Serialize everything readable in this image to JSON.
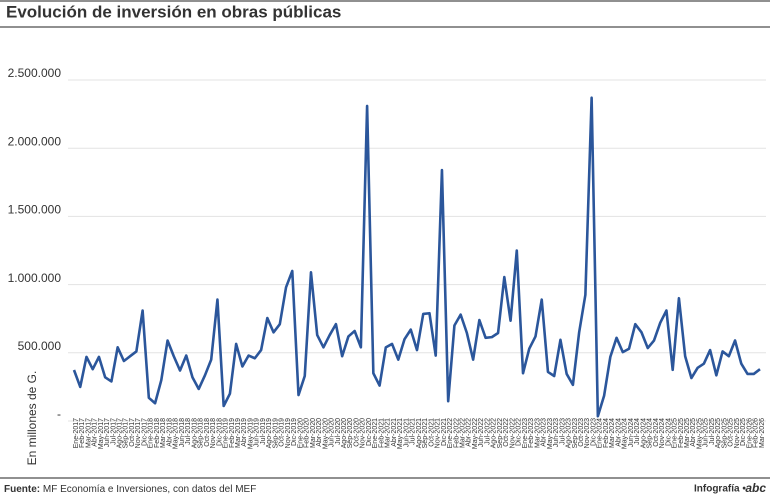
{
  "chart_data": {
    "type": "line",
    "title": "Evolución de inversión en obras públicas",
    "y_label": "En millones de G.",
    "source_label": "Fuente:",
    "source": "MF Economía e Inversiones, con datos del MEF",
    "credit": "Infografía •",
    "logo": "abc",
    "categories": [
      "Ene-2017",
      "Feb-2017",
      "Mar-2017",
      "Abr-2017",
      "May-2017",
      "Jun-2017",
      "Jul-2017",
      "Ago-2017",
      "Sep-2017",
      "Oct-2017",
      "Nov-2017",
      "Dic-2017",
      "Ene-2018",
      "Feb-2018",
      "Mar-2018",
      "Abr-2018",
      "May-2018",
      "Jun-2018",
      "Jul-2018",
      "Ago-2018",
      "Sep-2018",
      "Oct-2018",
      "Nov-2018",
      "Dic-2018",
      "Ene-2019",
      "Feb-2019",
      "Mar-2019",
      "Abr-2019",
      "May-2019",
      "Jun-2019",
      "Jul-2019",
      "Ago-2019",
      "Sep-2019",
      "Oct-2019",
      "Nov-2019",
      "Dic-2019",
      "Ene-2020",
      "Feb-2020",
      "Mar-2020",
      "Abr-2020",
      "May-2020",
      "Jun-2020",
      "Jul-2020",
      "Ago-2020",
      "Sep-2020",
      "Oct-2020",
      "Nov-2020",
      "Dic-2020",
      "Ene-2021",
      "Feb-2021",
      "Mar-2021",
      "Abr-2021",
      "May-2021",
      "Jun-2021",
      "Jul-2021",
      "Ago-2021",
      "Sep-2021",
      "Oct-2021",
      "Nov-2021",
      "Dic-2021",
      "Ene-2022",
      "Feb-2022",
      "Mar-2022",
      "Abr-2022",
      "May-2022",
      "Jun-2022",
      "Jul-2022",
      "Ago-2022",
      "Sep-2022",
      "Oct-2022",
      "Nov-2022",
      "Dic-2022",
      "Ene-2023",
      "Feb-2023",
      "Mar-2023",
      "Abr-2023",
      "May-2023",
      "Jun-2023",
      "Jul-2023",
      "Ago-2023",
      "Sep-2023",
      "Oct-2023",
      "Nov-2023",
      "Dic-2023",
      "Ene-2024",
      "Feb-2024",
      "Mar-2024",
      "Abr-2024",
      "May-2024",
      "Jun-2024",
      "Jul-2024",
      "Ago-2024",
      "Sep-2024",
      "Oct-2024",
      "Nov-2024",
      "Dic-2024",
      "Ene-2025",
      "Feb-2025",
      "Mar-2025",
      "Abr-2025",
      "May-2025",
      "Jun-2025",
      "Jul-2025",
      "Ago-2025",
      "Sep-2025",
      "Oct-2025",
      "Nov-2025",
      "Dic-2025",
      "Ene-2026",
      "Feb-2026",
      "Mar-2026"
    ],
    "values": [
      374000,
      250000,
      470000,
      380000,
      470000,
      320000,
      290000,
      540000,
      440000,
      475000,
      510000,
      810000,
      170000,
      130000,
      300000,
      590000,
      475000,
      370000,
      480000,
      320000,
      235000,
      335000,
      450000,
      890000,
      110000,
      200000,
      565000,
      400000,
      480000,
      460000,
      520000,
      755000,
      650000,
      710000,
      980000,
      1100000,
      190000,
      330000,
      1090000,
      630000,
      540000,
      630000,
      710000,
      475000,
      620000,
      660000,
      540000,
      2310000,
      350000,
      260000,
      540000,
      565000,
      450000,
      600000,
      670000,
      520000,
      785000,
      790000,
      480000,
      1840000,
      145000,
      700000,
      780000,
      645000,
      450000,
      740000,
      610000,
      615000,
      645000,
      1055000,
      735000,
      1250000,
      350000,
      530000,
      620000,
      890000,
      360000,
      330000,
      595000,
      345000,
      265000,
      650000,
      925000,
      2370000,
      35000,
      185000,
      470000,
      610000,
      505000,
      530000,
      710000,
      650000,
      535000,
      590000,
      720000,
      810000,
      375000,
      900000,
      475000,
      315000,
      390000,
      420000,
      520000,
      335000,
      510000,
      475000,
      590000,
      420000,
      345000,
      345000,
      380000
    ],
    "color": "#2b569b",
    "ylim": [
      0,
      2750000
    ],
    "yticks": [
      {
        "value": 0,
        "label": "-"
      },
      {
        "value": 500000,
        "label": "500.000"
      },
      {
        "value": 1000000,
        "label": "1.000.000"
      },
      {
        "value": 1500000,
        "label": "1.500.000"
      },
      {
        "value": 2000000,
        "label": "2.000.000"
      },
      {
        "value": 2500000,
        "label": "2.500.000"
      }
    ],
    "grid": true
  }
}
